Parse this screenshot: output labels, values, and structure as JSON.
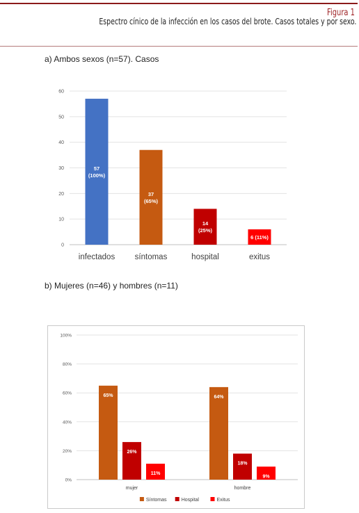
{
  "header": {
    "figure_label": "Figura 1",
    "title": "Espectro cínico de la infección en los casos del brote. Casos totales y por sexo."
  },
  "chart_data": [
    {
      "type": "bar",
      "title": "a) Ambos sexos (n=57). Casos",
      "categories": [
        "infectados",
        "síntomas",
        "hospital",
        "exitus"
      ],
      "values": [
        57,
        37,
        14,
        6
      ],
      "data_labels": [
        "57\n(100%)",
        "37\n(65%)",
        "14\n(25%)",
        "6 (11%)"
      ],
      "colors": [
        "#4472c4",
        "#c55a11",
        "#c00000",
        "#ff0000"
      ],
      "ylim": [
        0,
        60
      ],
      "yticks": [
        0,
        10,
        20,
        30,
        40,
        50,
        60
      ],
      "grid": true
    },
    {
      "type": "bar",
      "title": "b) Mujeres (n=46) y hombres (n=11)",
      "categories": [
        "mujer",
        "hombre"
      ],
      "series": [
        {
          "name": "Síntomas",
          "values": [
            65,
            64
          ],
          "labels": [
            "65%",
            "64%"
          ],
          "color": "#c55a11"
        },
        {
          "name": "Hospital",
          "values": [
            26,
            18
          ],
          "labels": [
            "26%",
            "18%"
          ],
          "color": "#c00000"
        },
        {
          "name": "Exitus",
          "values": [
            11,
            9
          ],
          "labels": [
            "11%",
            "9%"
          ],
          "color": "#ff0000"
        }
      ],
      "ylim": [
        0,
        100
      ],
      "yticks": [
        "0%",
        "20%",
        "40%",
        "60%",
        "80%",
        "100%"
      ],
      "legend_position": "bottom",
      "grid": true
    }
  ]
}
